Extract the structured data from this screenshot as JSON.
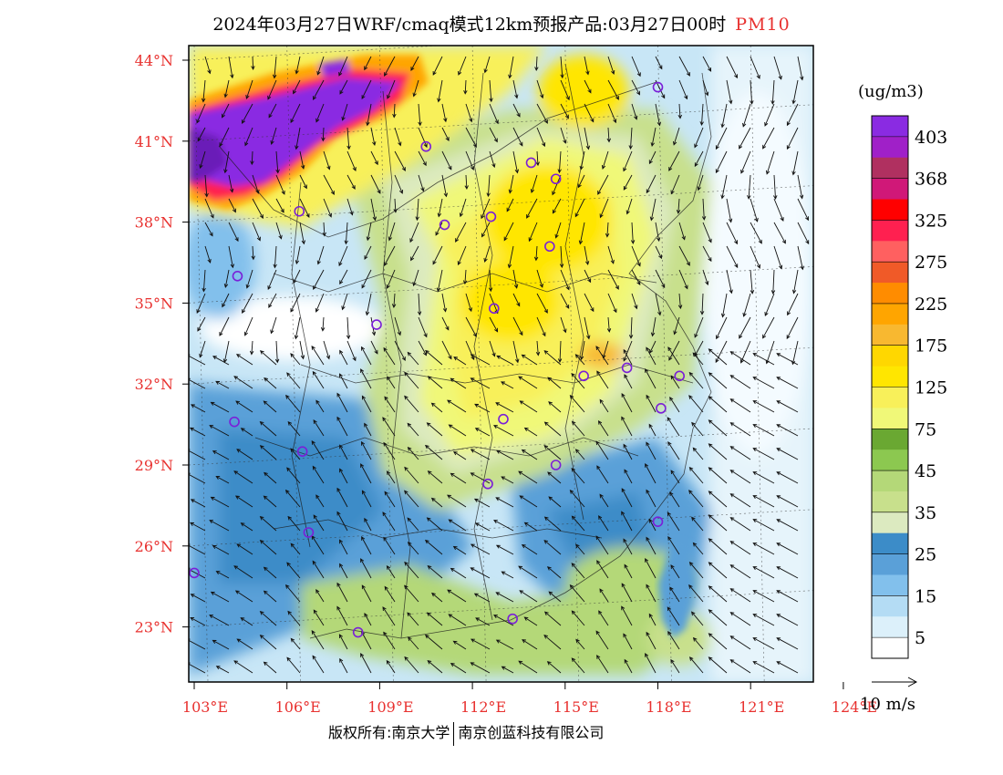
{
  "title": {
    "main": "2024年03月27日WRF/cmaq模式12km预报产品:03月27日00时",
    "pollutant": "PM10"
  },
  "axes": {
    "lat_labels": [
      "44°N",
      "41°N",
      "38°N",
      "35°N",
      "32°N",
      "29°N",
      "26°N",
      "23°N"
    ],
    "lat_values": [
      44,
      41,
      38,
      35,
      32,
      29,
      26,
      23
    ],
    "lon_labels": [
      "103°E",
      "106°E",
      "109°E",
      "112°E",
      "115°E",
      "118°E",
      "121°E",
      "124°E"
    ],
    "lon_values": [
      103,
      106,
      109,
      112,
      115,
      118,
      121,
      124
    ],
    "label_color": "#e8312f"
  },
  "colorbar": {
    "unit": "(ug/m3)",
    "labels": [
      "403",
      "368",
      "325",
      "275",
      "225",
      "175",
      "125",
      "75",
      "45",
      "35",
      "25",
      "15",
      "5"
    ],
    "colors_top_to_bottom": [
      "#8a2be2",
      "#a020c8",
      "#b03060",
      "#d01878",
      "#ff0000",
      "#ff2050",
      "#ff6060",
      "#f05a28",
      "#ff8c00",
      "#ffa500",
      "#f8b830",
      "#ffd700",
      "#ffe600",
      "#f8f05a",
      "#f0f878",
      "#6aa832",
      "#8cc850",
      "#b4d878",
      "#c8e08c",
      "#dceac0",
      "#3c8cc8",
      "#5aa0d8",
      "#82c0ec",
      "#b4dcf4",
      "#dcf0fa",
      "#ffffff"
    ]
  },
  "cities": [
    {
      "lon": 118.0,
      "lat": 43.0
    },
    {
      "lon": 110.5,
      "lat": 40.8
    },
    {
      "lon": 113.9,
      "lat": 40.2
    },
    {
      "lon": 114.7,
      "lat": 39.6
    },
    {
      "lon": 106.4,
      "lat": 38.4
    },
    {
      "lon": 111.1,
      "lat": 37.9
    },
    {
      "lon": 112.6,
      "lat": 38.2
    },
    {
      "lon": 114.5,
      "lat": 37.1
    },
    {
      "lon": 104.4,
      "lat": 36.0
    },
    {
      "lon": 112.7,
      "lat": 34.8
    },
    {
      "lon": 108.9,
      "lat": 34.2
    },
    {
      "lon": 117.0,
      "lat": 32.6
    },
    {
      "lon": 118.7,
      "lat": 32.3
    },
    {
      "lon": 115.6,
      "lat": 32.3
    },
    {
      "lon": 118.1,
      "lat": 31.1
    },
    {
      "lon": 104.3,
      "lat": 30.6
    },
    {
      "lon": 113.0,
      "lat": 30.7
    },
    {
      "lon": 106.5,
      "lat": 29.5
    },
    {
      "lon": 114.7,
      "lat": 29.0
    },
    {
      "lon": 112.5,
      "lat": 28.3
    },
    {
      "lon": 106.7,
      "lat": 26.5
    },
    {
      "lon": 103.0,
      "lat": 25.0
    },
    {
      "lon": 118.0,
      "lat": 26.9
    },
    {
      "lon": 108.3,
      "lat": 22.8
    },
    {
      "lon": 113.3,
      "lat": 23.3
    }
  ],
  "wind_reference": "10 m/s",
  "footer": {
    "copyright": "版权所有:南京大学",
    "company": "南京创蓝科技有限公司"
  }
}
